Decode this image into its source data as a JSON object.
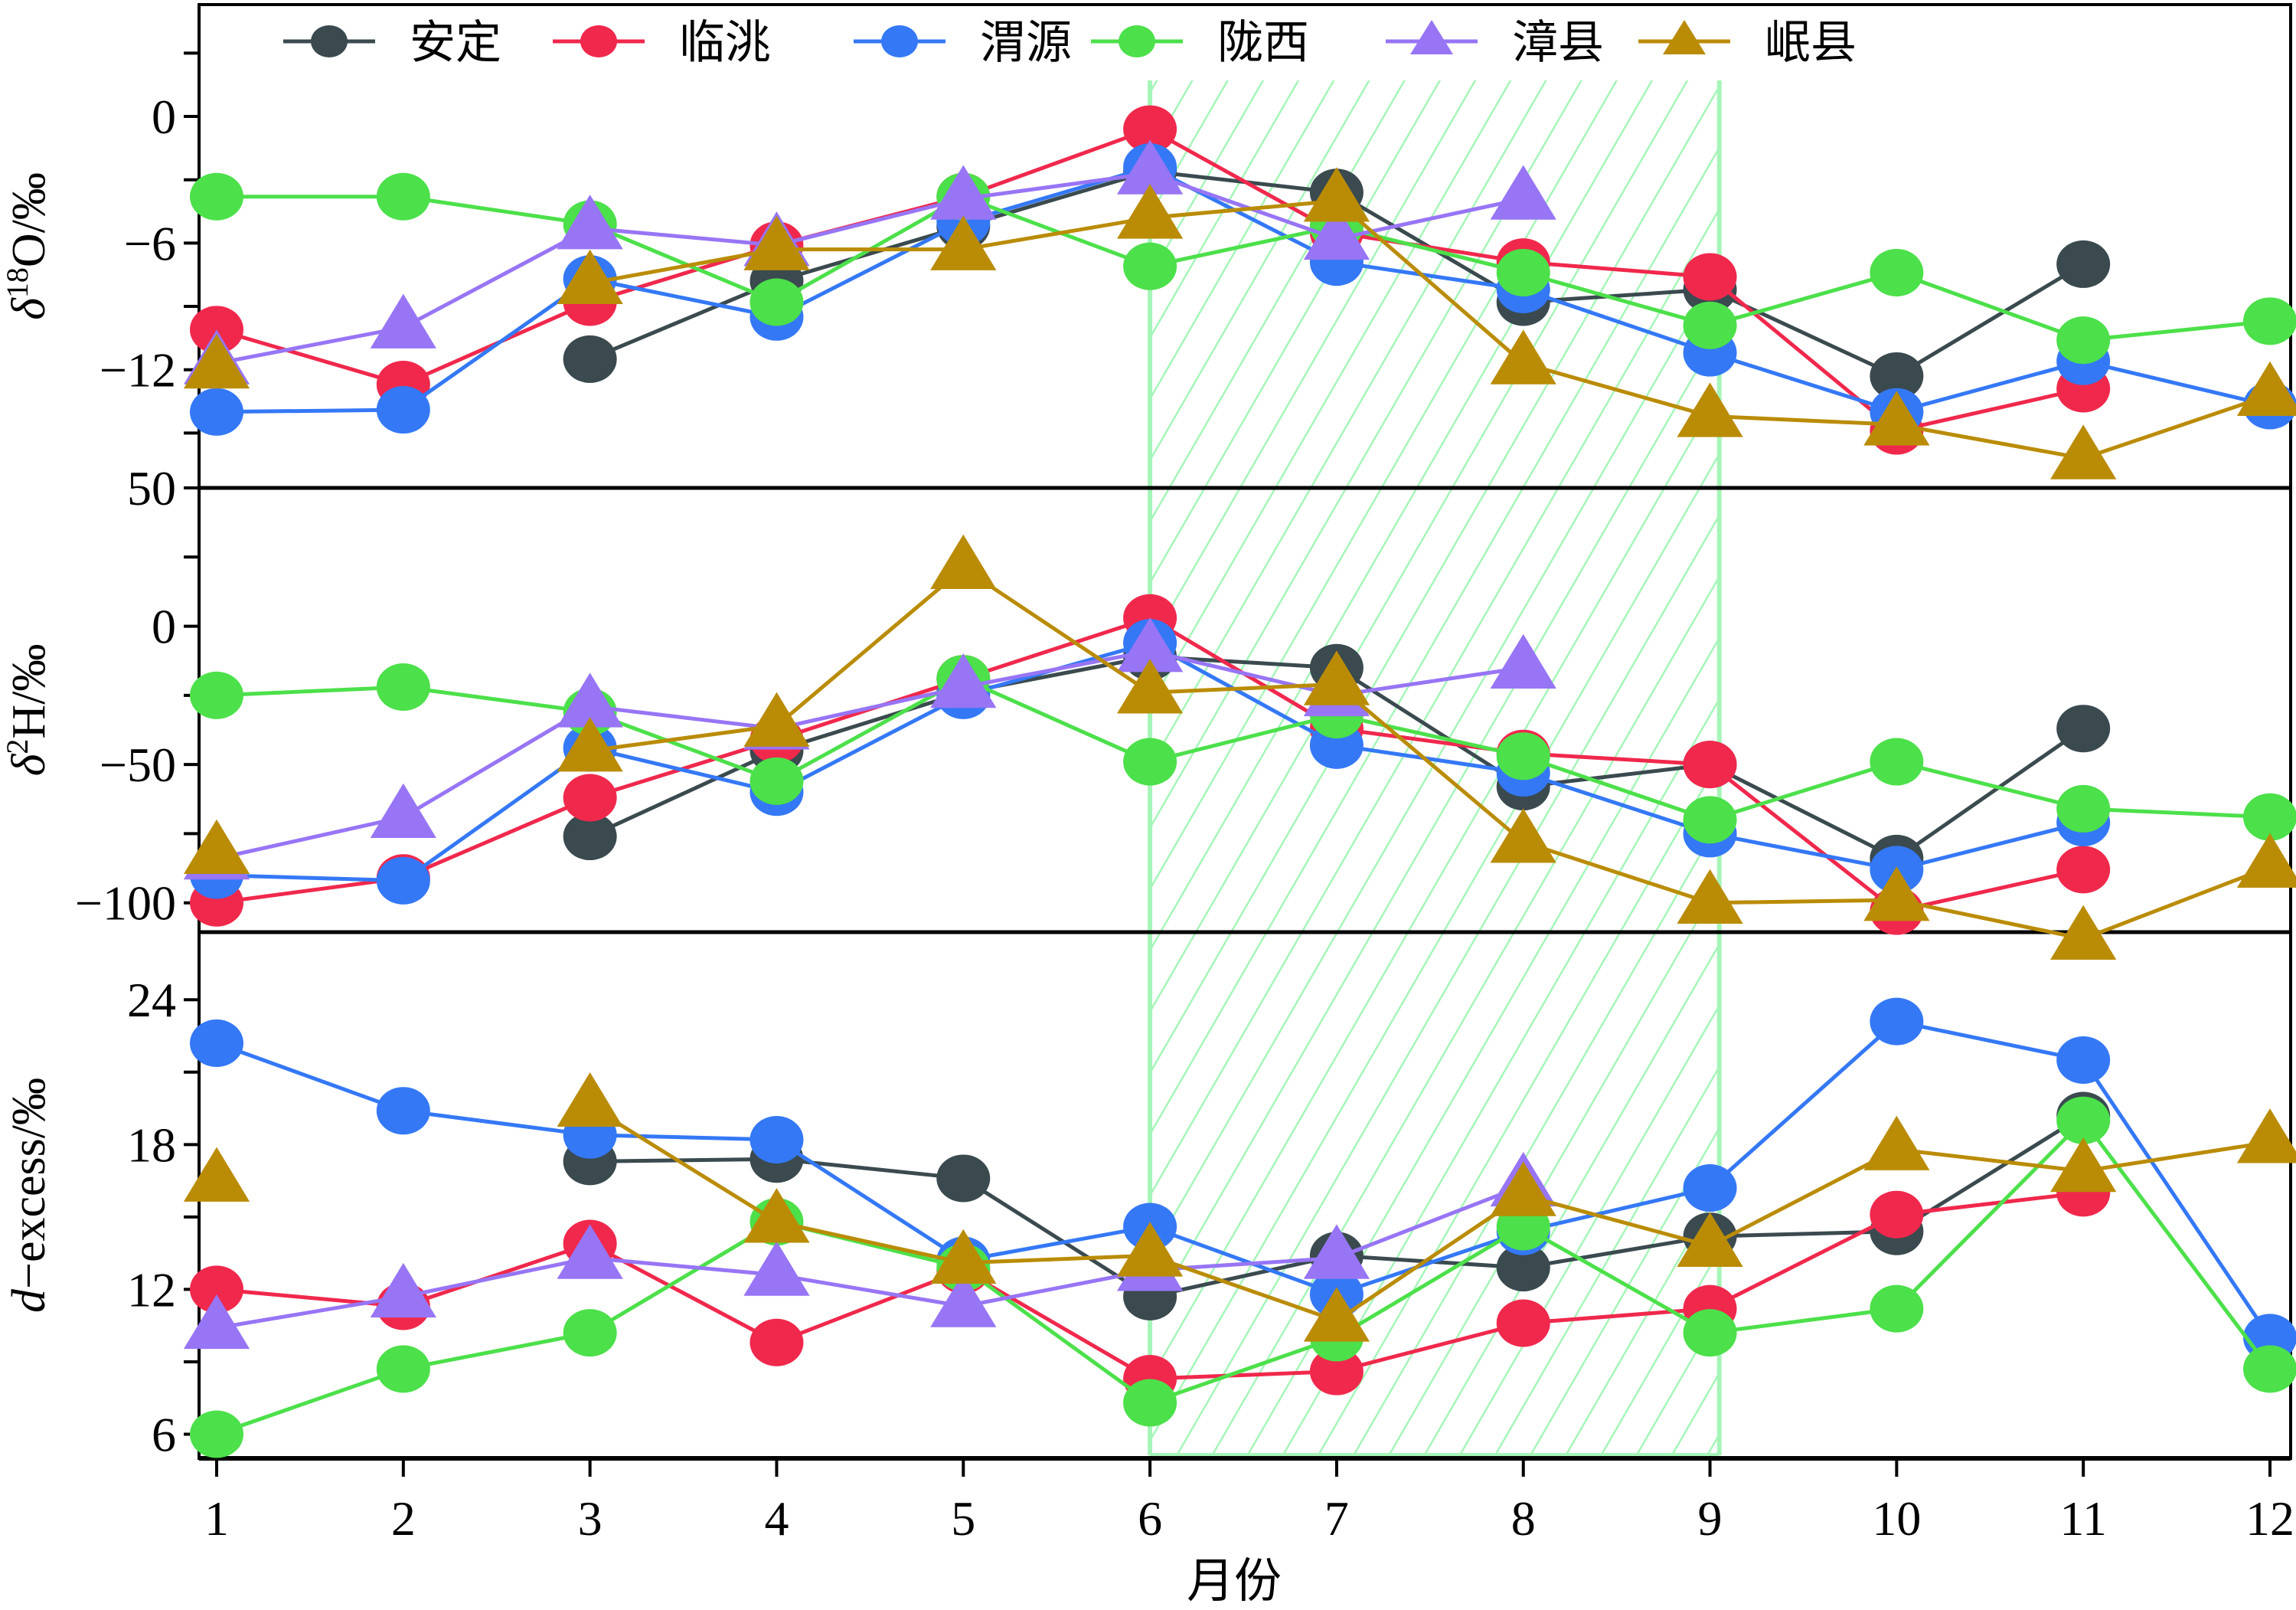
{
  "chart_data": {
    "type": "line",
    "x": [
      1,
      2,
      3,
      4,
      5,
      6,
      7,
      8,
      9,
      10,
      11,
      12
    ],
    "x_tick_labels": [
      "1",
      "2",
      "3",
      "4",
      "5",
      "6",
      "7",
      "8",
      "9",
      "10",
      "11",
      "12"
    ],
    "xlabel": "月份",
    "xlim": [
      0.9,
      12.1
    ],
    "legend": {
      "placement": "top",
      "entries": [
        {
          "name": "安定",
          "color": "#3a4a4f",
          "marker": "circle"
        },
        {
          "name": "临洮",
          "color": "#f0284c",
          "marker": "circle"
        },
        {
          "name": "渭源",
          "color": "#3478f6",
          "marker": "circle"
        },
        {
          "name": "陇西",
          "color": "#4ce04a",
          "marker": "circle"
        },
        {
          "name": "漳县",
          "color": "#9775f5",
          "marker": "triangle"
        },
        {
          "name": "岷县",
          "color": "#ba8c06",
          "marker": "triangle"
        }
      ]
    },
    "highlight_region": {
      "x_start": 6,
      "x_end": 9.05,
      "color": "#a6f5b8",
      "pattern": "diagonal-hatch"
    },
    "panels": [
      {
        "id": "d18O",
        "ylabel_prefix": "δ",
        "ylabel_sup": "18",
        "ylabel_suffix": "O/‰",
        "ylim": [
          -17.6,
          5.3
        ],
        "yticks": [
          0,
          -6,
          -12
        ],
        "ytick_labels": [
          "0",
          "−6",
          "−12"
        ],
        "minor_yticks": [
          3,
          -3,
          -9,
          -15
        ],
        "series": [
          {
            "name": "安定",
            "values": [
              null,
              null,
              -11.5,
              -7.8,
              -5.2,
              -2.6,
              -3.6,
              -8.8,
              -8.2,
              -12.3,
              -7.0,
              null
            ]
          },
          {
            "name": "临洮",
            "values": [
              -10.1,
              -12.7,
              -8.8,
              -6.1,
              -3.8,
              -0.6,
              -5.5,
              -6.9,
              -7.6,
              -14.9,
              -12.9,
              null
            ]
          },
          {
            "name": "渭源",
            "values": [
              -14.0,
              -13.9,
              -7.7,
              -9.5,
              -5.0,
              -2.4,
              -6.9,
              -8.2,
              -11.2,
              -14.0,
              -11.6,
              -13.7
            ]
          },
          {
            "name": "陇西",
            "values": [
              -3.8,
              -3.8,
              -5.1,
              -8.8,
              -3.8,
              -7.1,
              -5.2,
              -7.4,
              -9.9,
              -7.4,
              -10.6,
              -9.7
            ]
          },
          {
            "name": "漳县",
            "values": [
              -11.7,
              -10.0,
              -5.3,
              -6.1,
              -3.9,
              -2.7,
              -5.8,
              -3.9,
              null,
              null,
              null,
              null
            ]
          },
          {
            "name": "岷县",
            "values": [
              -11.9,
              null,
              -7.9,
              -6.3,
              -6.3,
              -4.8,
              -4.0,
              -11.7,
              -14.2,
              -14.6,
              -16.2,
              -13.2
            ]
          }
        ]
      },
      {
        "id": "d2H",
        "ylabel_prefix": "δ",
        "ylabel_sup": "2",
        "ylabel_suffix": "H/‰",
        "ylim": [
          -110.6,
          50
        ],
        "yticks": [
          50,
          0,
          -50,
          -100
        ],
        "ytick_labels": [
          "50",
          "0",
          "−50",
          "−100"
        ],
        "minor_yticks": [
          25,
          -25,
          -75
        ],
        "series": [
          {
            "name": "安定",
            "values": [
              null,
              null,
              -76,
              -45,
              -24,
              -11,
              -15,
              -58,
              -50,
              -84,
              -37,
              null
            ]
          },
          {
            "name": "临洮",
            "values": [
              -100,
              -91,
              -62,
              -41,
              -19,
              3,
              -37,
              -46,
              -50,
              -103,
              -88,
              null
            ]
          },
          {
            "name": "渭源",
            "values": [
              -90,
              -92,
              -44,
              -60,
              -25,
              -6,
              -43,
              -53,
              -75,
              -88,
              -71,
              null
            ]
          },
          {
            "name": "陇西",
            "values": [
              -25,
              -22,
              -31,
              -56,
              -19,
              -49,
              -32,
              -47,
              -70,
              -49,
              -66,
              -69
            ]
          },
          {
            "name": "漳县",
            "values": [
              -84,
              -69,
              -29,
              -37,
              -22,
              -9,
              -25,
              -15,
              null,
              null,
              null,
              null
            ]
          },
          {
            "name": "岷县",
            "values": [
              -82,
              null,
              -45,
              -36,
              21,
              -24,
              -21,
              -78,
              -100,
              -99,
              -113,
              -87
            ]
          }
        ]
      },
      {
        "id": "dexcess",
        "ylabel_prefix": "d",
        "ylabel_sup": "",
        "ylabel_suffix": "−excess/‰",
        "ylim": [
          5.0,
          26.8
        ],
        "yticks": [
          24,
          18,
          12,
          6
        ],
        "ytick_labels": [
          "24",
          "18",
          "12",
          "6"
        ],
        "minor_yticks": [
          21,
          15,
          9
        ],
        "series": [
          {
            "name": "安定",
            "values": [
              null,
              null,
              17.3,
              17.4,
              16.6,
              11.7,
              13.4,
              12.9,
              14.2,
              14.4,
              19.2,
              null
            ]
          },
          {
            "name": "临洮",
            "values": [
              12.0,
              11.3,
              13.9,
              9.8,
              12.8,
              8.3,
              8.6,
              10.6,
              11.2,
              15.1,
              16.0,
              null
            ]
          },
          {
            "name": "渭源",
            "values": [
              22.2,
              19.4,
              18.4,
              18.2,
              13.2,
              14.6,
              11.8,
              14.4,
              16.2,
              23.1,
              21.5,
              10.0
            ]
          },
          {
            "name": "陇西",
            "values": [
              6.0,
              8.7,
              10.2,
              14.8,
              12.9,
              7.3,
              10.0,
              14.6,
              10.2,
              11.2,
              19.0,
              8.7
            ]
          },
          {
            "name": "漳县",
            "values": [
              10.4,
              11.7,
              13.3,
              12.6,
              11.3,
              12.8,
              13.3,
              16.3,
              null,
              null,
              null,
              null
            ]
          },
          {
            "name": "岷县",
            "values": [
              16.5,
              null,
              19.6,
              14.8,
              13.1,
              13.4,
              10.7,
              15.9,
              13.8,
              17.8,
              16.9,
              18.1
            ]
          }
        ]
      }
    ]
  }
}
